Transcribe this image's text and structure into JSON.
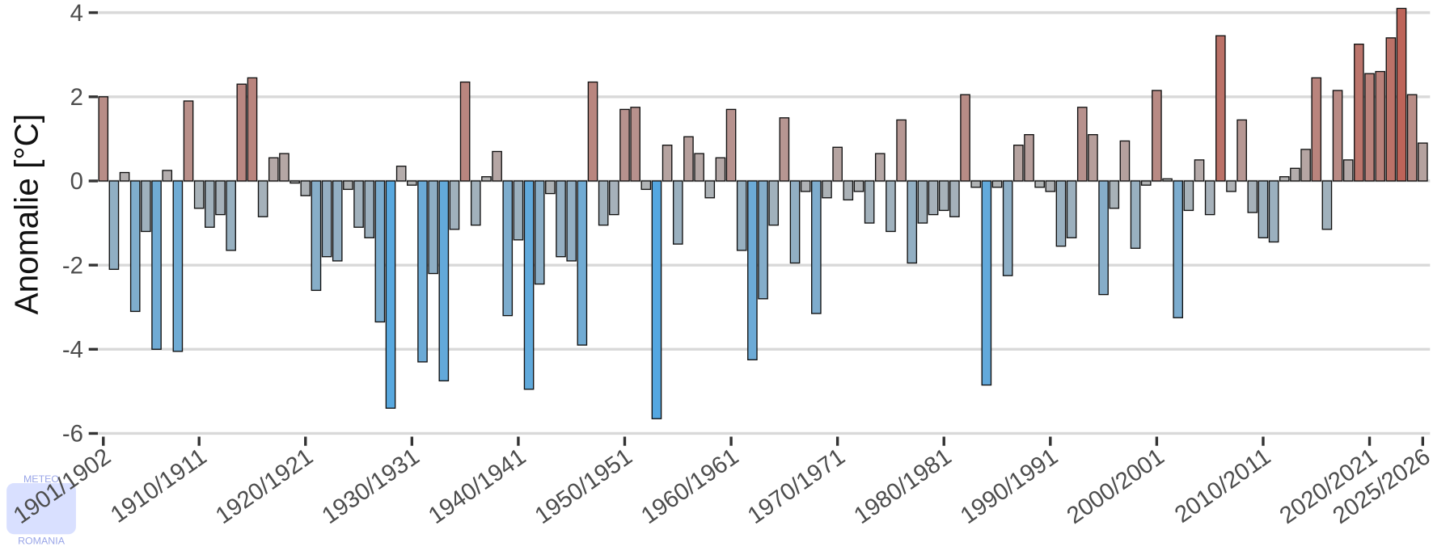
{
  "chart_data": {
    "type": "bar",
    "y_label": "Anomalie [°C]",
    "logo": {
      "top": "METEO",
      "bottom": "ROMANIA"
    },
    "categories": [
      "1901/1902",
      null,
      null,
      null,
      null,
      null,
      null,
      null,
      null,
      "1910/1911",
      null,
      null,
      null,
      null,
      null,
      null,
      null,
      null,
      null,
      "1920/1921",
      null,
      null,
      null,
      null,
      null,
      null,
      null,
      null,
      null,
      "1930/1931",
      null,
      null,
      null,
      null,
      null,
      null,
      null,
      null,
      null,
      "1940/1941",
      null,
      null,
      null,
      null,
      null,
      null,
      null,
      null,
      null,
      "1950/1951",
      null,
      null,
      null,
      null,
      null,
      null,
      null,
      null,
      null,
      "1960/1961",
      null,
      null,
      null,
      null,
      null,
      null,
      null,
      null,
      null,
      "1970/1971",
      null,
      null,
      null,
      null,
      null,
      null,
      null,
      null,
      null,
      "1980/1981",
      null,
      null,
      null,
      null,
      null,
      null,
      null,
      null,
      null,
      "1990/1991",
      null,
      null,
      null,
      null,
      null,
      null,
      null,
      null,
      null,
      "2000/2001",
      null,
      null,
      null,
      null,
      null,
      null,
      null,
      null,
      null,
      "2010/2011",
      null,
      null,
      null,
      null,
      null,
      null,
      null,
      null,
      null,
      "2020/2021",
      null,
      null,
      null,
      null,
      "2025/2026"
    ],
    "values": [
      2.0,
      -2.1,
      0.2,
      -3.1,
      -1.2,
      -4.0,
      0.25,
      -4.05,
      1.9,
      -0.65,
      -1.1,
      -0.8,
      -1.65,
      2.3,
      2.45,
      -0.85,
      0.55,
      0.65,
      -0.05,
      -0.35,
      -2.6,
      -1.8,
      -1.9,
      -0.2,
      -1.1,
      -1.35,
      -3.35,
      -5.4,
      0.35,
      -0.1,
      -4.3,
      -2.2,
      -4.75,
      -1.15,
      2.35,
      -1.05,
      0.1,
      0.7,
      -3.2,
      -1.4,
      -4.95,
      -2.45,
      -0.3,
      -1.8,
      -1.9,
      -3.9,
      2.35,
      -1.05,
      -0.8,
      1.7,
      1.75,
      -0.2,
      -5.65,
      0.85,
      -1.5,
      1.05,
      0.65,
      -0.4,
      0.55,
      1.7,
      -1.65,
      -4.25,
      -2.8,
      -1.05,
      1.5,
      -1.95,
      -0.25,
      -3.15,
      -0.4,
      0.8,
      -0.45,
      -0.25,
      -1.0,
      0.65,
      -1.2,
      1.45,
      -1.95,
      -1.0,
      -0.8,
      -0.7,
      -0.85,
      2.05,
      -0.15,
      -4.85,
      -0.15,
      -2.25,
      0.85,
      1.1,
      -0.15,
      -0.25,
      -1.55,
      -1.35,
      1.75,
      1.1,
      -2.7,
      -0.65,
      0.95,
      -1.6,
      -0.1,
      2.15,
      0.05,
      -3.25,
      -0.7,
      0.5,
      -0.8,
      3.45,
      -0.25,
      1.45,
      -0.75,
      -1.35,
      -1.45,
      0.1,
      0.3,
      0.75,
      2.45,
      -1.15,
      2.15,
      0.5,
      3.25,
      2.55,
      2.6,
      3.4,
      4.1,
      2.05,
      0.9
    ],
    "colors": {
      "negative": "#4aa6e6",
      "zero": "#b3b3b3",
      "positive": "#c23b2a"
    },
    "ylim": [
      -6.25,
      4.3
    ],
    "yticks": [
      4,
      2,
      0,
      -2,
      -4,
      -6
    ],
    "grid": true
  }
}
